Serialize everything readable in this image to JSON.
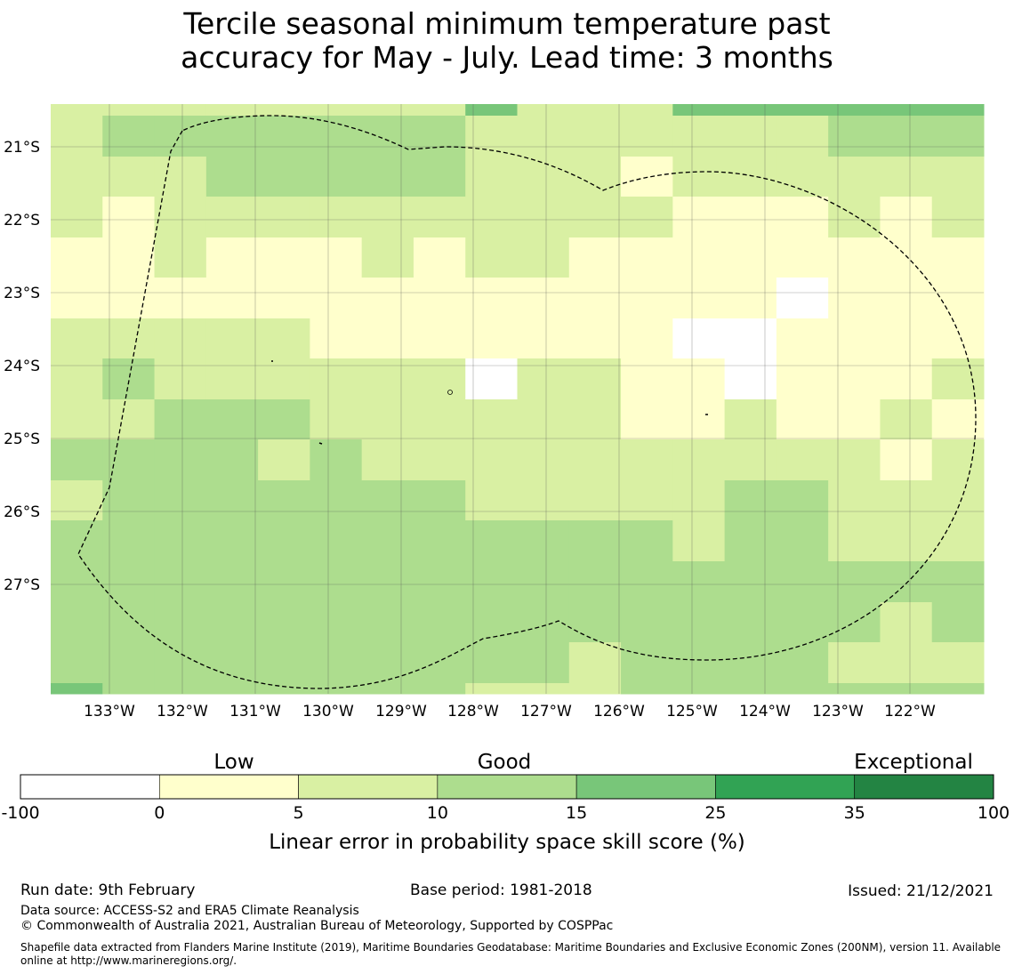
{
  "title": {
    "line1": "Tercile seasonal minimum temperature past",
    "line2": "accuracy for May - July. Lead time: 3 months"
  },
  "map": {
    "lat_labels": [
      "21°S",
      "22°S",
      "23°S",
      "24°S",
      "25°S",
      "26°S",
      "27°S"
    ],
    "lon_labels": [
      "133°W",
      "132°W",
      "131°W",
      "130°W",
      "129°W",
      "128°W",
      "127°W",
      "126°W",
      "125°W",
      "124°W",
      "123°W",
      "122°W"
    ],
    "boundary_style": "dashed",
    "grid": true,
    "colors": {
      "W": "#ffffff",
      "Y": "#ffffcc",
      "L": "#d9f0a3",
      "M": "#addd8e",
      "D": "#78c679",
      "G": "#31a354",
      "E": "#238443"
    },
    "cells": [
      "LLLLLLLLDLLLDDDDDD",
      "LMMMMMMMLLLLLLLMMM",
      "LLLMMMMMLLLYLLLLLL",
      "LYLLLLLLLLLLYYYLYL",
      "YYLYYYLYLLYYYYYYYY",
      "YYYYYYYYYYYYYYWYYY",
      "LLLLLYYYYYYYWWYYYY",
      "LMLLLLLLWLLYYWYYYL",
      "LLMMMLLLLLLYYLYYLY",
      "MMMMLMLLLLLLLLLLYL",
      "LMMMMMMMLLLLLMMLLL",
      "MMMMMMMMMMMMLMMLLL",
      "MMMMMMMMMMMMMMMMMM",
      "MMMMMMMMMMMMMMMMLM",
      "MMMMMMMMMMLMMMMLLL",
      "DMMMMMMMLLLMMMMMMM"
    ]
  },
  "colorbar": {
    "categories": [
      "Low",
      "Good",
      "Exceptional"
    ],
    "tick_labels": [
      "-100",
      "0",
      "5",
      "10",
      "15",
      "25",
      "35",
      "100"
    ],
    "colors": [
      "#ffffff",
      "#ffffcc",
      "#d9f0a3",
      "#addd8e",
      "#78c679",
      "#31a354",
      "#238443"
    ],
    "label": "Linear error in probability space skill score (%)"
  },
  "footer": {
    "run_date": "Run date: 9th February",
    "base_period": "Base period: 1981-2018",
    "issued": "Issued: 21/12/2021",
    "data_source": "Data source: ACCESS-S2 and ERA5 Climate Reanalysis",
    "copyright": "© Commonwealth of Australia 2021, Australian Bureau of Meteorology, Supported by COSPPac",
    "shapefile": "Shapefile data extracted from Flanders Marine Institute (2019), Maritime Boundaries Geodatabase: Maritime Boundaries and Exclusive Economic Zones (200NM), version 11. Available online at http://www.marineregions.org/."
  }
}
